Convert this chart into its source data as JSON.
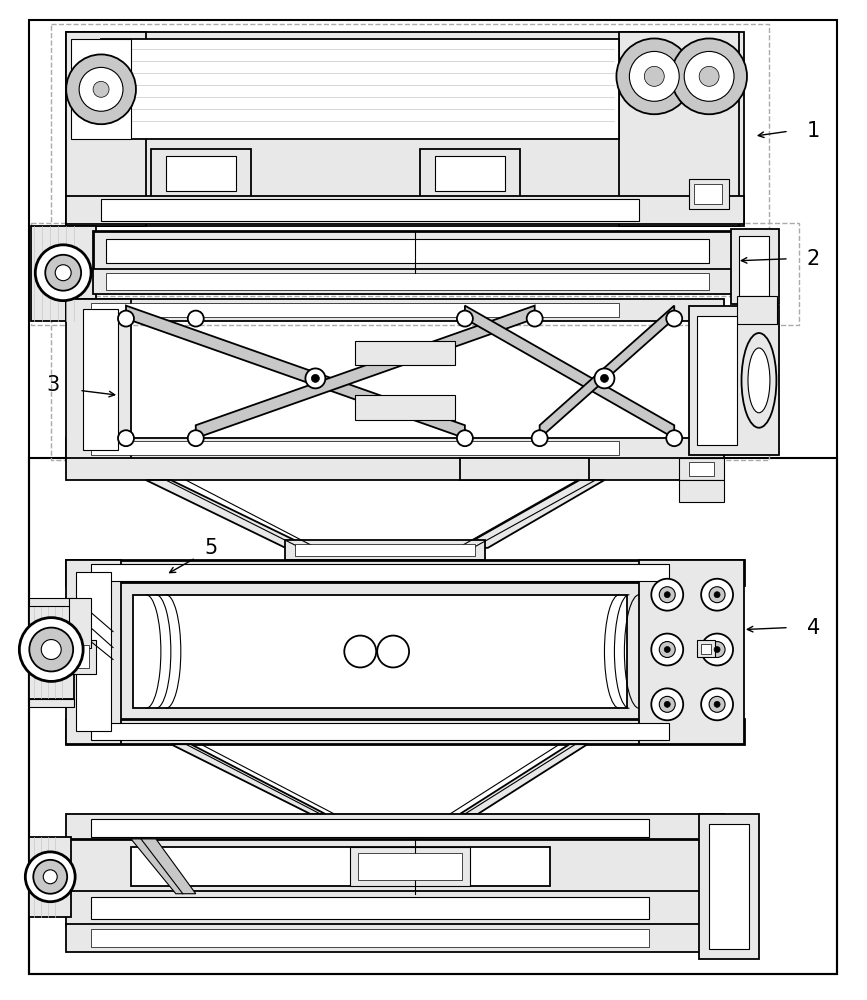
{
  "background_color": "#ffffff",
  "line_color": "#000000",
  "dashed_color": "#aaaaaa",
  "light_gray": "#e8e8e8",
  "medium_gray": "#c8c8c8",
  "dark_gray": "#888888",
  "figsize": [
    8.67,
    10.0
  ],
  "dpi": 100,
  "label_fontsize": 15
}
